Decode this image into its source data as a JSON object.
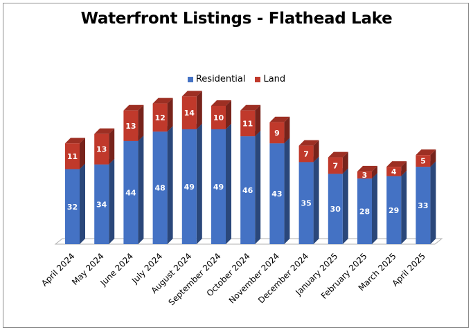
{
  "chart_data": {
    "type": "bar",
    "stacked": true,
    "three_d": true,
    "title": "Waterfront Listings - Flathead Lake",
    "categories": [
      "April 2024",
      "May 2024",
      "June 2024",
      "July 2024",
      "August 2024",
      "September 2024",
      "October 2024",
      "November 2024",
      "December 2024",
      "January 2025",
      "February 2025",
      "March 2025",
      "April 2025"
    ],
    "series": [
      {
        "name": "Residential",
        "color": "#4472C4",
        "values": [
          32,
          34,
          44,
          48,
          49,
          49,
          46,
          43,
          35,
          30,
          28,
          29,
          33
        ]
      },
      {
        "name": "Land",
        "color": "#C0392B",
        "values": [
          11,
          13,
          13,
          12,
          14,
          10,
          11,
          9,
          7,
          7,
          3,
          4,
          5
        ]
      }
    ],
    "ylim": [
      0,
      70
    ],
    "grid": false,
    "legend_position": "top"
  }
}
